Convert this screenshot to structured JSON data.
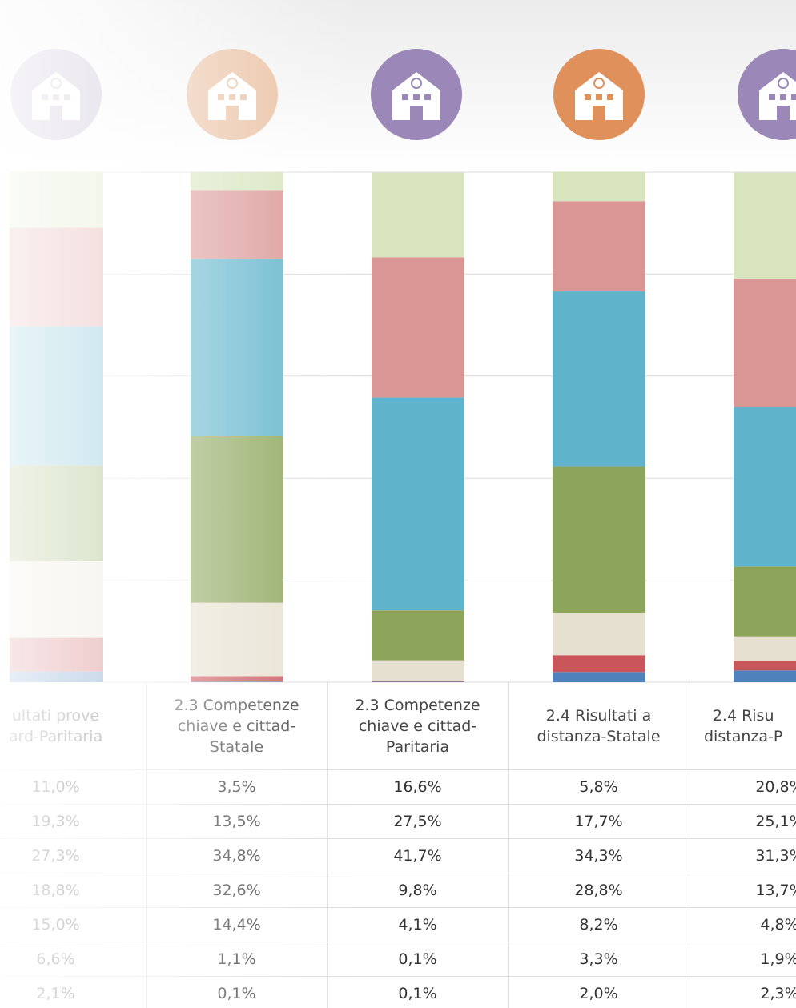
{
  "chart_data": {
    "type": "stacked_bar",
    "categories": [
      "ultati prove\nard-Paritaria",
      "2.3 Competenze\nchiave e cittad-\nStatale",
      "2.3 Competenze\nchiave e cittad-\nParitaria",
      "2.4 Risultati a\ndistanza-Statale",
      "2.4 Risu\ndistanza-P"
    ],
    "ylim": [
      0,
      100
    ],
    "yticks": [
      0,
      20,
      40,
      60,
      80,
      100
    ],
    "grid": true,
    "series": [
      {
        "color": "#d7e4bd",
        "values": [
          11.0,
          3.5,
          16.6,
          5.8,
          20.8
        ],
        "value_labels": [
          "11,0%",
          "3,5%",
          "16,6%",
          "5,8%",
          "20,8%"
        ]
      },
      {
        "color": "#d99694",
        "values": [
          19.3,
          13.5,
          27.5,
          17.7,
          25.1
        ],
        "value_labels": [
          "19,3%",
          "13,5%",
          "27,5%",
          "17,7%",
          "25,1%"
        ]
      },
      {
        "color": "#5fb3cb",
        "values": [
          27.3,
          34.8,
          41.7,
          34.3,
          31.3
        ],
        "value_labels": [
          "27,3%",
          "34,8%",
          "41,7%",
          "34,3%",
          "31,3%"
        ]
      },
      {
        "color": "#8ca55a",
        "values": [
          18.8,
          32.6,
          9.8,
          28.8,
          13.7
        ],
        "value_labels": [
          "18,8%",
          "32,6%",
          "9,8%",
          "28,8%",
          "13,7%"
        ]
      },
      {
        "color": "#e6e0d0",
        "values": [
          15.0,
          14.4,
          4.1,
          8.2,
          4.8
        ],
        "value_labels": [
          "15,0%",
          "14,4%",
          "4,1%",
          "8,2%",
          "4,8%"
        ]
      },
      {
        "color": "#c9565a",
        "values": [
          6.6,
          1.1,
          0.1,
          3.3,
          1.9
        ],
        "value_labels": [
          "6,6%",
          "1,1%",
          "0,1%",
          "3,3%",
          "1,9%"
        ]
      },
      {
        "color": "#4f81bd",
        "values": [
          2.1,
          0.1,
          0.1,
          2.0,
          2.3
        ],
        "value_labels": [
          "2,1%",
          "0,1%",
          "0,1%",
          "2,0%",
          "2,3%"
        ]
      }
    ]
  }
}
